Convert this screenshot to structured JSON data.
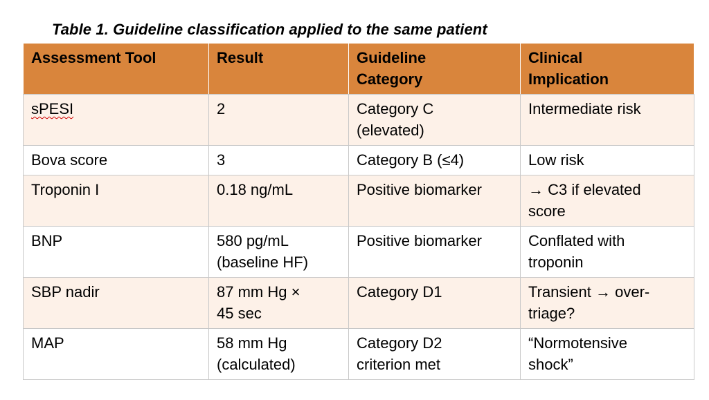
{
  "caption": "Table 1. Guideline classification applied to the same patient",
  "table": {
    "headers": [
      [
        "Assessment Tool"
      ],
      [
        "Result"
      ],
      [
        "Guideline",
        "Category"
      ],
      [
        "Clinical",
        "Implication"
      ]
    ],
    "rows": [
      [
        [
          "sPESI"
        ],
        [
          "2"
        ],
        [
          "Category C",
          "(elevated)"
        ],
        [
          "Intermediate risk"
        ]
      ],
      [
        [
          "Bova score"
        ],
        [
          "3"
        ],
        [
          "Category B (≤4)"
        ],
        [
          "Low risk"
        ]
      ],
      [
        [
          "Troponin I"
        ],
        [
          "0.18 ng/mL"
        ],
        [
          "Positive biomarker"
        ],
        [
          "→ C3 if elevated",
          "score"
        ]
      ],
      [
        [
          "BNP"
        ],
        [
          "580 pg/mL",
          "(baseline HF)"
        ],
        [
          "Positive biomarker"
        ],
        [
          "Conflated with",
          "troponin"
        ]
      ],
      [
        [
          "SBP nadir"
        ],
        [
          "87 mm Hg ×",
          "45 sec"
        ],
        [
          "Category D1"
        ],
        [
          "Transient → over-",
          "triage?"
        ]
      ],
      [
        [
          "MAP"
        ],
        [
          "58 mm Hg",
          "(calculated)"
        ],
        [
          "Category D2",
          "criterion met"
        ],
        [
          "“Normotensive",
          "shock”"
        ]
      ]
    ]
  },
  "colors": {
    "header_fill": "#d9853c",
    "band_fill": "#fdf1e8",
    "grid_line": "#c8c8c8",
    "spellcheck_underline": "#d00000"
  }
}
